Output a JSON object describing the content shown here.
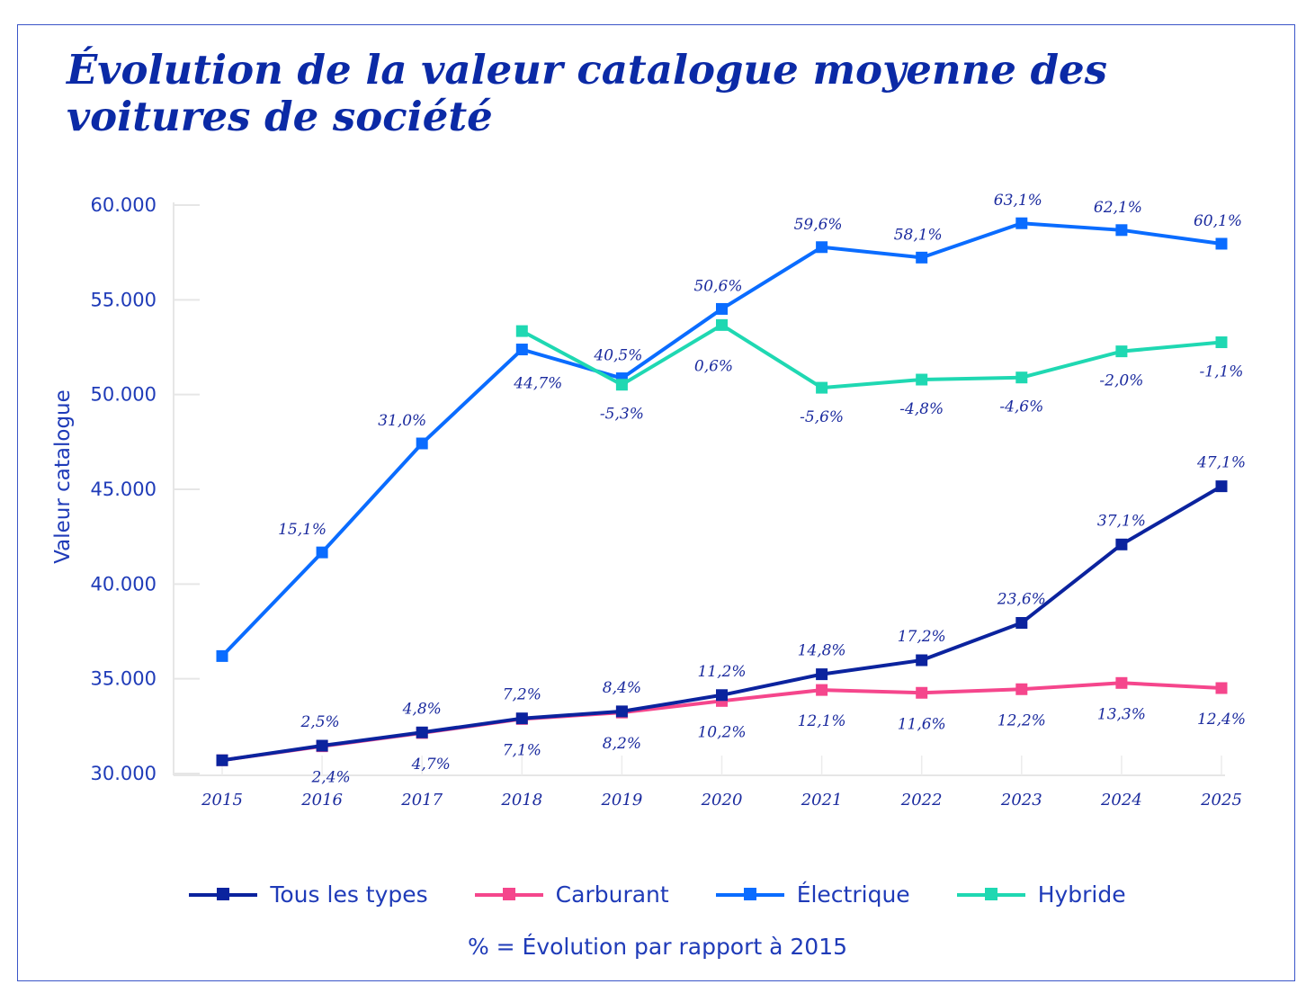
{
  "title": "Évolution de la valeur catalogue moyenne des voitures de société",
  "note": "% = Évolution par rapport à 2015",
  "chart_data": {
    "type": "line",
    "title": "Évolution de la valeur catalogue moyenne des voitures de société",
    "xlabel": "",
    "ylabel": "Valeur catalogue",
    "ylim": [
      30000,
      60000
    ],
    "yticks": [
      "30.000",
      "35.000",
      "40.000",
      "45.000",
      "50.000",
      "55.000",
      "60.000"
    ],
    "ytick_values": [
      30000,
      35000,
      40000,
      45000,
      50000,
      55000,
      60000
    ],
    "categories": [
      "2015",
      "2016",
      "2017",
      "2018",
      "2019",
      "2020",
      "2021",
      "2022",
      "2023",
      "2024",
      "2025"
    ],
    "grid": false,
    "legend_position": "bottom",
    "series": [
      {
        "name": "Tous les types",
        "color": "#0b239e",
        "values": [
          30700,
          31470,
          32170,
          32910,
          33280,
          34140,
          35240,
          35980,
          37950,
          42090,
          45160
        ],
        "labels": [
          "",
          "2,5%",
          "4,8%",
          "7,2%",
          "8,4%",
          "11,2%",
          "14,8%",
          "17,2%",
          "23,6%",
          "37,1%",
          "47,1%"
        ]
      },
      {
        "name": "Carburant",
        "color": "#f5468c",
        "values": [
          30700,
          31440,
          32140,
          32880,
          33220,
          33830,
          34410,
          34260,
          34450,
          34780,
          34510
        ],
        "labels": [
          "",
          "2,4%",
          "4,7%",
          "7,1%",
          "8,2%",
          "10,2%",
          "12,1%",
          "11,6%",
          "12,2%",
          "13,3%",
          "12,4%"
        ]
      },
      {
        "name": "Électrique",
        "color": "#0a6cff",
        "values": [
          36200,
          41670,
          47420,
          52380,
          50860,
          54520,
          57780,
          57230,
          59040,
          58680,
          57960
        ],
        "labels": [
          "",
          "15,1%",
          "31,0%",
          "44,7%",
          "40,5%",
          "50,6%",
          "59,6%",
          "58,1%",
          "63,1%",
          "62,1%",
          "60,1%"
        ]
      },
      {
        "name": "Hybride",
        "color": "#1fd8b2",
        "values": [
          null,
          null,
          null,
          53350,
          50520,
          53670,
          50360,
          50790,
          50900,
          52280,
          52760
        ],
        "labels": [
          "",
          "",
          "",
          "",
          "-5,3%",
          "0,6%",
          "-5,6%",
          "-4,8%",
          "-4,6%",
          "-2,0%",
          "-1,1%"
        ]
      }
    ]
  }
}
